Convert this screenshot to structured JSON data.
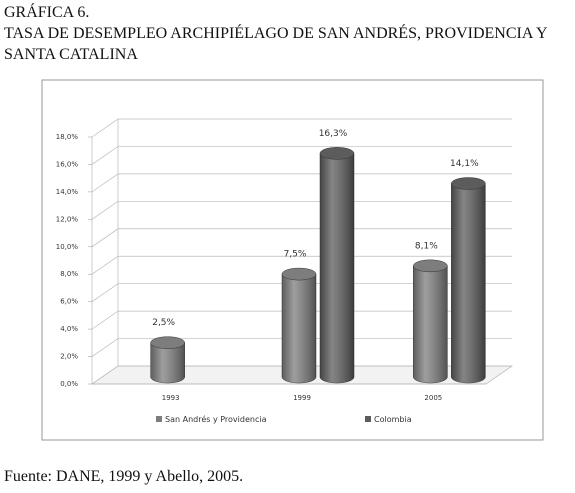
{
  "chart_data": {
    "type": "bar3d",
    "label": "GRÁFICA 6.",
    "title": "TASA DE DESEMPLEO ARCHIPIÉLAGO DE SAN ANDRÉS, PROVIDENCIA Y SANTA CATALINA",
    "source": "Fuente: DANE, 1999 y Abello, 2005.",
    "categories": [
      "1993",
      "1999",
      "2005"
    ],
    "series": [
      {
        "name": "San Andrés y Providencia",
        "color": "#7d7d7d",
        "values": [
          2.5,
          7.5,
          8.1
        ],
        "value_labels": [
          "2,5%",
          "7,5%",
          "8,1%"
        ]
      },
      {
        "name": "Colombia",
        "color": "#5c5c5c",
        "values": [
          null,
          16.3,
          14.1
        ],
        "value_labels": [
          null,
          "16,3%",
          "14,1%"
        ]
      }
    ],
    "ylim": [
      0,
      18
    ],
    "yticks": [
      {
        "value": 0,
        "label": "0,0%"
      },
      {
        "value": 2,
        "label": "2,0%"
      },
      {
        "value": 4,
        "label": "4,0%"
      },
      {
        "value": 6,
        "label": "6,0%"
      },
      {
        "value": 8,
        "label": "8,0%"
      },
      {
        "value": 10,
        "label": "10,0%"
      },
      {
        "value": 12,
        "label": "12,0%"
      },
      {
        "value": 14,
        "label": "14,0%"
      },
      {
        "value": 16,
        "label": "16,0%"
      },
      {
        "value": 18,
        "label": "18,0%"
      }
    ],
    "grid": true
  }
}
